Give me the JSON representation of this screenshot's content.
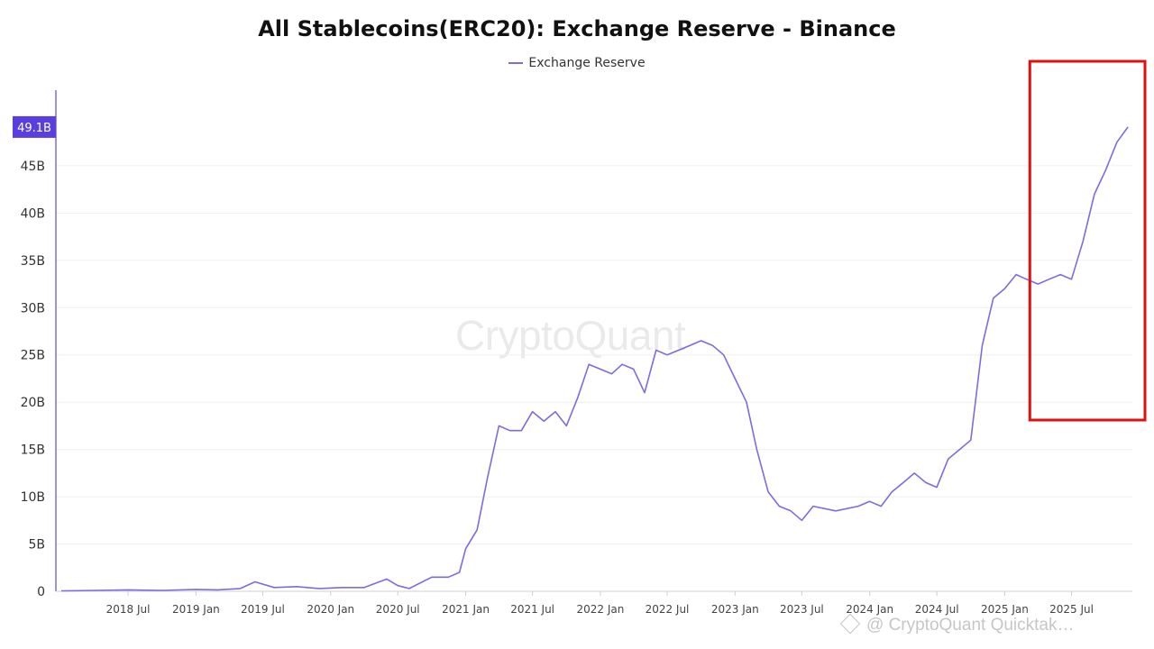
{
  "chart_data": {
    "type": "line",
    "title": "All Stablecoins(ERC20): Exchange Reserve - Binance",
    "series": [
      {
        "name": "Exchange Reserve",
        "color": "#7b6ce0",
        "x": [
          "2018-01-01",
          "2018-04-01",
          "2018-07-01",
          "2018-10-01",
          "2019-01-01",
          "2019-03-01",
          "2019-05-01",
          "2019-06-10",
          "2019-08-01",
          "2019-10-01",
          "2019-12-01",
          "2020-02-01",
          "2020-04-01",
          "2020-06-01",
          "2020-07-01",
          "2020-08-01",
          "2020-10-01",
          "2020-11-15",
          "2020-12-15",
          "2021-01-01",
          "2021-02-01",
          "2021-03-01",
          "2021-04-01",
          "2021-05-01",
          "2021-06-01",
          "2021-07-01",
          "2021-08-01",
          "2021-09-01",
          "2021-10-01",
          "2021-11-01",
          "2021-12-01",
          "2022-01-01",
          "2022-02-01",
          "2022-03-01",
          "2022-04-01",
          "2022-05-01",
          "2022-06-01",
          "2022-07-01",
          "2022-08-01",
          "2022-09-01",
          "2022-10-01",
          "2022-11-01",
          "2022-12-01",
          "2023-01-01",
          "2023-02-01",
          "2023-03-01",
          "2023-04-01",
          "2023-05-01",
          "2023-06-01",
          "2023-07-01",
          "2023-08-01",
          "2023-10-01",
          "2023-12-01",
          "2024-01-01",
          "2024-02-01",
          "2024-03-01",
          "2024-04-01",
          "2024-05-01",
          "2024-06-01",
          "2024-07-01",
          "2024-08-01",
          "2024-09-01",
          "2024-10-01",
          "2024-11-01",
          "2024-12-01",
          "2025-01-01",
          "2025-02-01",
          "2025-03-01",
          "2025-04-01",
          "2025-05-01",
          "2025-06-01",
          "2025-07-01",
          "2025-08-01",
          "2025-09-01",
          "2025-10-01",
          "2025-11-01",
          "2025-12-01"
        ],
        "values": [
          0.05,
          0.1,
          0.15,
          0.1,
          0.2,
          0.15,
          0.3,
          1.0,
          0.4,
          0.5,
          0.3,
          0.4,
          0.4,
          1.3,
          0.6,
          0.3,
          1.5,
          1.5,
          2.0,
          4.5,
          6.5,
          12.0,
          17.5,
          17.0,
          17.0,
          19.0,
          18.0,
          19.0,
          17.5,
          20.5,
          24.0,
          23.5,
          23.0,
          24.0,
          23.5,
          21.0,
          25.5,
          25.0,
          25.5,
          26.0,
          26.5,
          26.0,
          25.0,
          22.5,
          20.0,
          15.0,
          10.5,
          9.0,
          8.5,
          7.5,
          9.0,
          8.5,
          9.0,
          9.5,
          9.0,
          10.5,
          11.5,
          12.5,
          11.5,
          11.0,
          14.0,
          15.0,
          16.0,
          26.0,
          31.0,
          32.0,
          33.5,
          33.0,
          32.5,
          33.0,
          33.5,
          33.0,
          37.0,
          42.0,
          44.5,
          47.5,
          49.1
        ]
      }
    ],
    "x_tick_labels": [
      "2018 Jul",
      "2019 Jan",
      "2019 Jul",
      "2020 Jan",
      "2020 Jul",
      "2021 Jan",
      "2021 Jul",
      "2022 Jan",
      "2022 Jul",
      "2023 Jan",
      "2023 Jul",
      "2024 Jan",
      "2024 Jul",
      "2025 Jan",
      "2025 Jul"
    ],
    "y_tick_labels": [
      "0",
      "5B",
      "10B",
      "15B",
      "20B",
      "25B",
      "30B",
      "35B",
      "40B",
      "45B"
    ],
    "y_ticks": [
      0,
      5,
      10,
      15,
      20,
      25,
      30,
      35,
      40,
      45
    ],
    "ylim": [
      0,
      53
    ],
    "last_value_label": "49.1B",
    "highlight_box": {
      "color": "#e01010",
      "x_start": "2025-03-10",
      "x_end": "2026-01-20"
    },
    "grid": true,
    "legend_position": "top-center"
  },
  "watermark": {
    "main": "CryptoQuant",
    "footer": "@ CryptoQuant Quicktak…"
  }
}
